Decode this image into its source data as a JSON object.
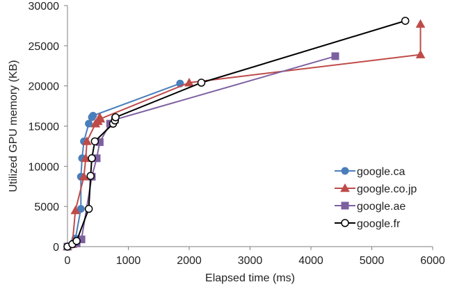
{
  "chart_data": {
    "type": "line",
    "title": "",
    "xlabel": "Elapsed time (ms)",
    "ylabel": "Utilized GPU memory (KB)",
    "xlim": [
      0,
      6000
    ],
    "ylim": [
      0,
      30000
    ],
    "x_ticks": [
      0,
      1000,
      2000,
      3000,
      4000,
      5000,
      6000
    ],
    "y_ticks": [
      0,
      5000,
      10000,
      15000,
      20000,
      25000,
      30000
    ],
    "grid": "none",
    "legend_position": "right",
    "series": [
      {
        "name": "google.ca",
        "color": "#4a7ebb",
        "marker": "circle",
        "points": [
          [
            0,
            0
          ],
          [
            100,
            500
          ],
          [
            130,
            1000
          ],
          [
            220,
            4700
          ],
          [
            220,
            8700
          ],
          [
            240,
            11000
          ],
          [
            270,
            13100
          ],
          [
            350,
            15300
          ],
          [
            400,
            16100
          ],
          [
            420,
            16300
          ],
          [
            1850,
            20300
          ]
        ]
      },
      {
        "name": "google.co.jp",
        "color": "#be4b48",
        "marker": "triangle",
        "points": [
          [
            0,
            0
          ],
          [
            80,
            300
          ],
          [
            130,
            4500
          ],
          [
            270,
            8700
          ],
          [
            300,
            11000
          ],
          [
            320,
            13100
          ],
          [
            460,
            15300
          ],
          [
            500,
            15600
          ],
          [
            530,
            16100
          ],
          [
            540,
            15900
          ],
          [
            2000,
            20400
          ],
          [
            5800,
            23900
          ],
          [
            5800,
            27700
          ]
        ]
      },
      {
        "name": "google.ae",
        "color": "#7d60a0",
        "marker": "square",
        "points": [
          [
            0,
            0
          ],
          [
            150,
            400
          ],
          [
            230,
            900
          ],
          [
            400,
            8700
          ],
          [
            480,
            11000
          ],
          [
            530,
            13000
          ],
          [
            700,
            15300
          ],
          [
            780,
            15800
          ],
          [
            4400,
            23700
          ]
        ]
      },
      {
        "name": "google.fr",
        "color": "#000000",
        "marker": "open-circle",
        "points": [
          [
            0,
            0
          ],
          [
            80,
            300
          ],
          [
            150,
            700
          ],
          [
            350,
            4700
          ],
          [
            380,
            8800
          ],
          [
            400,
            11000
          ],
          [
            450,
            13100
          ],
          [
            750,
            15300
          ],
          [
            780,
            15700
          ],
          [
            790,
            16100
          ],
          [
            2200,
            20400
          ],
          [
            5550,
            28100
          ]
        ]
      }
    ]
  }
}
